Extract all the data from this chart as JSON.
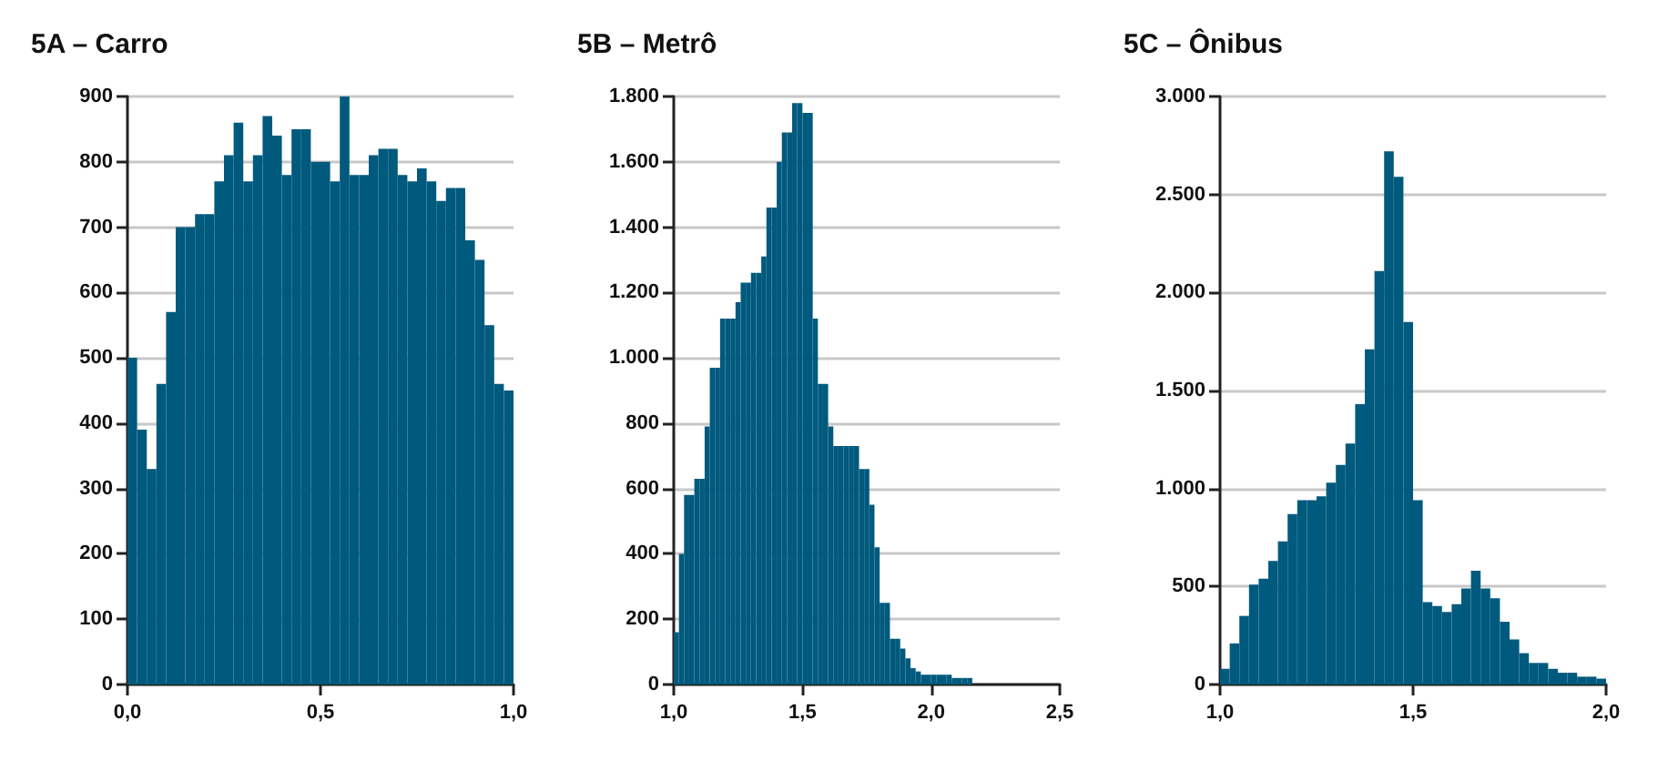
{
  "chart_data": [
    {
      "type": "histogram",
      "title": "5A – Carro",
      "color": "#005a7d",
      "grid": "y",
      "bins": [
        0,
        0.025,
        0.05,
        0.075,
        0.1,
        0.125,
        0.15,
        0.175,
        0.2,
        0.225,
        0.25,
        0.275,
        0.3,
        0.325,
        0.35,
        0.375,
        0.4,
        0.425,
        0.45,
        0.475,
        0.5,
        0.525,
        0.55,
        0.575,
        0.6,
        0.625,
        0.65,
        0.675,
        0.7,
        0.725,
        0.75,
        0.775,
        0.8,
        0.825,
        0.85,
        0.875,
        0.9,
        0.925,
        0.95,
        0.975,
        1
      ],
      "values": [
        500,
        390,
        330,
        460,
        570,
        700,
        700,
        720,
        720,
        770,
        810,
        860,
        770,
        810,
        870,
        840,
        780,
        850,
        850,
        800,
        800,
        770,
        900,
        780,
        780,
        810,
        820,
        820,
        780,
        770,
        790,
        770,
        740,
        760,
        760,
        680,
        650,
        550,
        460,
        450
      ],
      "xlim": [
        0,
        1
      ],
      "xticks": [
        {
          "value": 0,
          "label": "0,0"
        },
        {
          "value": 0.5,
          "label": "0,5"
        },
        {
          "value": 1,
          "label": "1,0"
        }
      ],
      "ylim": [
        0,
        900
      ],
      "yticks": [
        0,
        100,
        200,
        300,
        400,
        500,
        600,
        700,
        800,
        900
      ]
    },
    {
      "type": "histogram",
      "title": "5B – Metrô",
      "color": "#005a7d",
      "grid": "y",
      "bins": [
        1,
        1.02,
        1.04,
        1.06,
        1.08,
        1.1,
        1.12,
        1.14,
        1.16,
        1.18,
        1.2,
        1.22,
        1.24,
        1.26,
        1.28,
        1.3,
        1.32,
        1.34,
        1.36,
        1.38,
        1.4,
        1.42,
        1.44,
        1.46,
        1.48,
        1.5,
        1.52,
        1.54,
        1.56,
        1.58,
        1.6,
        1.62,
        1.64,
        1.66,
        1.68,
        1.7,
        1.72,
        1.74,
        1.76,
        1.78,
        1.8,
        1.82,
        1.84,
        1.86,
        1.88,
        1.9,
        1.92,
        1.94,
        1.96,
        1.98,
        2,
        2.02,
        2.04,
        2.06,
        2.08,
        2.1,
        2.12,
        2.14,
        2.16
      ],
      "values": [
        160,
        400,
        580,
        580,
        630,
        630,
        790,
        970,
        970,
        1120,
        1120,
        1120,
        1170,
        1230,
        1230,
        1260,
        1260,
        1310,
        1460,
        1460,
        1600,
        1690,
        1690,
        1780,
        1780,
        1750,
        1750,
        1120,
        920,
        920,
        790,
        730,
        730,
        730,
        730,
        730,
        660,
        660,
        550,
        420,
        250,
        250,
        140,
        140,
        110,
        80,
        50,
        40,
        30,
        30,
        30,
        30,
        30,
        30,
        20,
        20,
        20,
        20
      ],
      "xlim": [
        1,
        2.5
      ],
      "xticks": [
        {
          "value": 1,
          "label": "1,0"
        },
        {
          "value": 1.5,
          "label": "1,5"
        },
        {
          "value": 2,
          "label": "2,0"
        },
        {
          "value": 2.5,
          "label": "2,5"
        }
      ],
      "ylim": [
        0,
        1800
      ],
      "yticks": [
        0,
        200,
        400,
        600,
        800,
        {
          "value": 1000,
          "label": "1.000"
        },
        {
          "value": 1200,
          "label": "1.200"
        },
        {
          "value": 1400,
          "label": "1.400"
        },
        {
          "value": 1600,
          "label": "1.600"
        },
        {
          "value": 1800,
          "label": "1.800"
        }
      ]
    },
    {
      "type": "histogram",
      "title": "5C – Ônibus",
      "color": "#005a7d",
      "grid": "y",
      "bins": [
        1,
        1.025,
        1.05,
        1.075,
        1.1,
        1.125,
        1.15,
        1.175,
        1.2,
        1.225,
        1.25,
        1.275,
        1.3,
        1.325,
        1.35,
        1.375,
        1.4,
        1.425,
        1.45,
        1.475,
        1.5,
        1.525,
        1.55,
        1.575,
        1.6,
        1.625,
        1.65,
        1.675,
        1.7,
        1.725,
        1.75,
        1.775,
        1.8,
        1.825,
        1.85,
        1.875,
        1.9,
        1.925,
        1.95,
        1.975,
        2
      ],
      "values": [
        80,
        210,
        350,
        510,
        540,
        630,
        730,
        870,
        940,
        940,
        960,
        1030,
        1120,
        1230,
        1430,
        1710,
        2110,
        2720,
        2590,
        1850,
        940,
        420,
        400,
        370,
        410,
        490,
        580,
        490,
        440,
        320,
        230,
        160,
        110,
        110,
        80,
        60,
        60,
        40,
        40,
        30
      ],
      "xlim": [
        1,
        2
      ],
      "xticks": [
        {
          "value": 1,
          "label": "1,0"
        },
        {
          "value": 1.5,
          "label": "1,5"
        },
        {
          "value": 2,
          "label": "2,0"
        }
      ],
      "ylim": [
        0,
        3000
      ],
      "yticks": [
        0,
        500,
        {
          "value": 1000,
          "label": "1.000"
        },
        {
          "value": 1500,
          "label": "1.500"
        },
        {
          "value": 2000,
          "label": "2.000"
        },
        {
          "value": 2500,
          "label": "2.500"
        },
        {
          "value": 3000,
          "label": "3.000"
        }
      ]
    }
  ]
}
